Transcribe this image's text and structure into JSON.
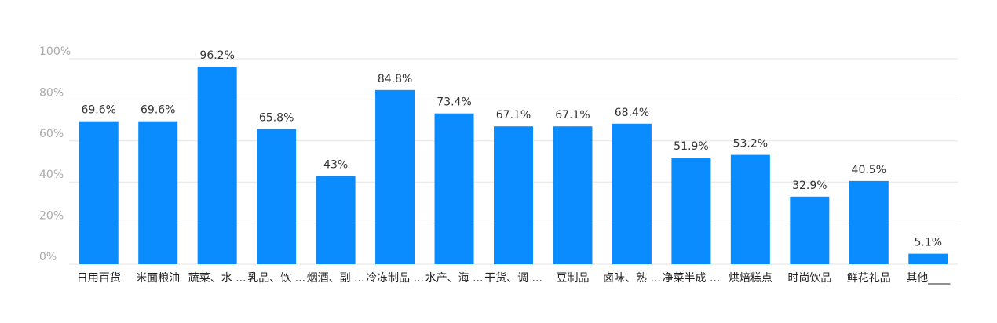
{
  "chart_data": {
    "type": "bar",
    "categories": [
      "日用百货",
      "米面粮油",
      "蔬菜、水 ...",
      "乳品、饮 ...",
      "烟酒、副 ...",
      "冷冻制品 ...",
      "水产、海 ...",
      "干货、调 ...",
      "豆制品",
      "卤味、熟 ...",
      "净菜半成 ...",
      "烘焙糕点",
      "时尚饮品",
      "鲜花礼品",
      "其他____"
    ],
    "values": [
      69.6,
      69.6,
      96.2,
      65.8,
      43,
      84.8,
      73.4,
      67.1,
      67.1,
      68.4,
      51.9,
      53.2,
      32.9,
      40.5,
      5.1
    ],
    "value_labels": [
      "69.6%",
      "69.6%",
      "96.2%",
      "65.8%",
      "43%",
      "84.8%",
      "73.4%",
      "67.1%",
      "67.1%",
      "68.4%",
      "51.9%",
      "53.2%",
      "32.9%",
      "40.5%",
      "5.1%"
    ],
    "color": "#0a8cff",
    "ylim": [
      0,
      100
    ],
    "yticks": [
      {
        "value": 0,
        "label": "0%"
      },
      {
        "value": 20,
        "label": "20%"
      },
      {
        "value": 40,
        "label": "40%"
      },
      {
        "value": 60,
        "label": "60%"
      },
      {
        "value": 80,
        "label": "80%"
      },
      {
        "value": 100,
        "label": "100%"
      }
    ],
    "grid": true
  }
}
